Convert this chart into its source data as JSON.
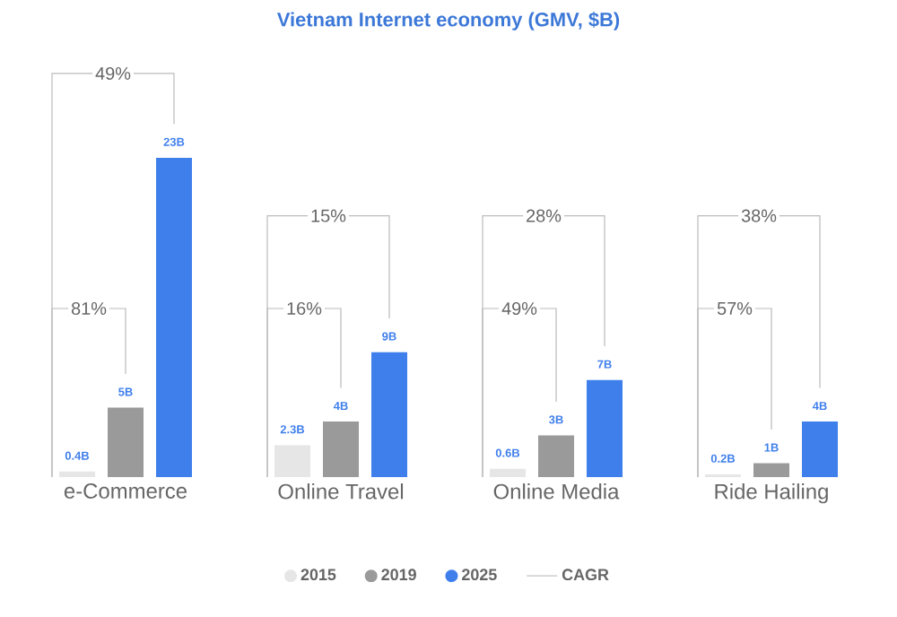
{
  "chart_data": {
    "type": "bar",
    "title": "Vietnam Internet economy (GMV, $B)",
    "categories": [
      "e-Commerce",
      "Online Travel",
      "Online Media",
      "Ride Hailing"
    ],
    "series": [
      {
        "name": "2015",
        "color": "#e6e6e6",
        "values": [
          0.4,
          2.3,
          0.6,
          0.2
        ],
        "value_labels": [
          "0.4B",
          "2.3B",
          "0.6B",
          "0.2B"
        ]
      },
      {
        "name": "2019",
        "color": "#9a9a9a",
        "values": [
          5,
          4,
          3,
          1
        ],
        "value_labels": [
          "5B",
          "4B",
          "3B",
          "1B"
        ]
      },
      {
        "name": "2025",
        "color": "#3f7fec",
        "values": [
          23,
          9,
          7,
          4
        ],
        "value_labels": [
          "23B",
          "9B",
          "7B",
          "4B"
        ]
      },
      {
        "name": "CAGR",
        "type": "line",
        "color": "#d6d6d6",
        "values": [
          null,
          null,
          null,
          null
        ]
      }
    ],
    "annotations": [
      "81%",
      "49%",
      "16%",
      "15%",
      "49%",
      "28%",
      "57%",
      "38%"
    ],
    "legend": "bottom"
  }
}
